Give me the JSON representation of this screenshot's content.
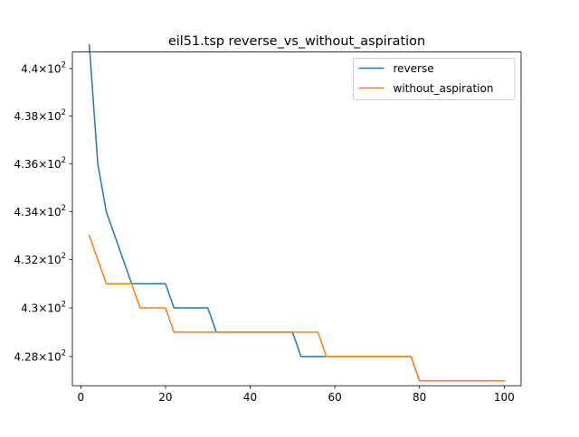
{
  "chart_data": {
    "type": "line",
    "title": "eil51.tsp  reverse_vs_without_aspiration",
    "xlabel": "",
    "ylabel": "",
    "xlim": [
      -2,
      104
    ],
    "ylim": [
      426.8,
      440.7
    ],
    "yscale": "log",
    "grid": false,
    "legend_position": "top-right",
    "x_ticks": [
      0,
      20,
      40,
      60,
      80,
      100
    ],
    "x_tick_labels": [
      "0",
      "20",
      "40",
      "60",
      "80",
      "100"
    ],
    "y_ticks": [
      428,
      430,
      432,
      434,
      436,
      438,
      440
    ],
    "y_tick_labels": [
      {
        "mant": "4.28",
        "times": "×",
        "base": "10",
        "exp": "2"
      },
      {
        "mant": "4.3",
        "times": "×",
        "base": "10",
        "exp": "2"
      },
      {
        "mant": "4.32",
        "times": "×",
        "base": "10",
        "exp": "2"
      },
      {
        "mant": "4.34",
        "times": "×",
        "base": "10",
        "exp": "2"
      },
      {
        "mant": "4.36",
        "times": "×",
        "base": "10",
        "exp": "2"
      },
      {
        "mant": "4.38",
        "times": "×",
        "base": "10",
        "exp": "2"
      },
      {
        "mant": "4.4",
        "times": "×",
        "base": "10",
        "exp": "2"
      }
    ],
    "series": [
      {
        "name": "reverse",
        "color": "#1f77b4",
        "x": [
          2,
          4,
          6,
          8,
          10,
          12,
          14,
          16,
          18,
          20,
          22,
          24,
          26,
          28,
          30,
          32,
          34,
          36,
          38,
          40,
          42,
          44,
          46,
          48,
          50,
          52,
          54,
          56,
          58,
          60,
          62,
          64,
          66,
          68,
          70,
          72,
          74,
          76,
          78,
          80,
          82,
          84,
          86,
          88,
          90,
          92,
          94,
          96,
          98,
          100
        ],
        "y": [
          441,
          436,
          434,
          433,
          432,
          431,
          431,
          431,
          431,
          431,
          430,
          430,
          430,
          430,
          430,
          429,
          429,
          429,
          429,
          429,
          429,
          429,
          429,
          429,
          429,
          428,
          428,
          428,
          428,
          428,
          428,
          428,
          428,
          428,
          428,
          428,
          428,
          428,
          428,
          427,
          427,
          427,
          427,
          427,
          427,
          427,
          427,
          427,
          427,
          427
        ]
      },
      {
        "name": "without_aspiration",
        "color": "#ff7f0e",
        "x": [
          2,
          4,
          6,
          8,
          10,
          12,
          14,
          16,
          18,
          20,
          22,
          24,
          26,
          28,
          30,
          32,
          34,
          36,
          38,
          40,
          42,
          44,
          46,
          48,
          50,
          52,
          54,
          56,
          58,
          60,
          62,
          64,
          66,
          68,
          70,
          72,
          74,
          76,
          78,
          80,
          82,
          84,
          86,
          88,
          90,
          92,
          94,
          96,
          98,
          100
        ],
        "y": [
          433,
          432,
          431,
          431,
          431,
          431,
          430,
          430,
          430,
          430,
          429,
          429,
          429,
          429,
          429,
          429,
          429,
          429,
          429,
          429,
          429,
          429,
          429,
          429,
          429,
          429,
          429,
          429,
          428,
          428,
          428,
          428,
          428,
          428,
          428,
          428,
          428,
          428,
          428,
          427,
          427,
          427,
          427,
          427,
          427,
          427,
          427,
          427,
          427,
          427
        ]
      }
    ]
  }
}
